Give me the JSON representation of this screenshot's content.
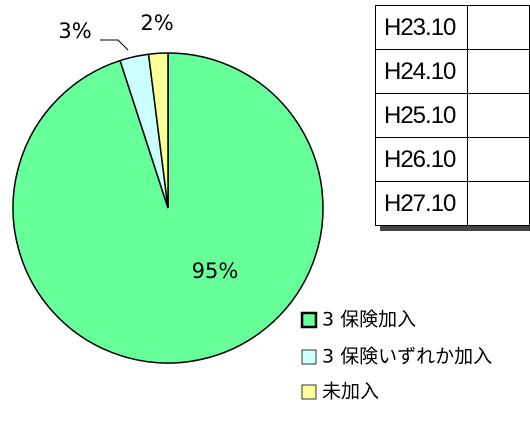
{
  "chart_data": {
    "type": "pie",
    "categories": [
      "3 保険加入",
      "3 保険いずれか加入",
      "未加入"
    ],
    "values": [
      95,
      3,
      2
    ],
    "value_labels": [
      "95%",
      "3%",
      "2%"
    ],
    "colors": [
      "#66ff99",
      "#ccffff",
      "#ffff99"
    ]
  },
  "table": {
    "rows": [
      [
        "H23.10"
      ],
      [
        "H24.10"
      ],
      [
        "H25.10"
      ],
      [
        "H26.10"
      ],
      [
        "H27.10"
      ]
    ]
  }
}
